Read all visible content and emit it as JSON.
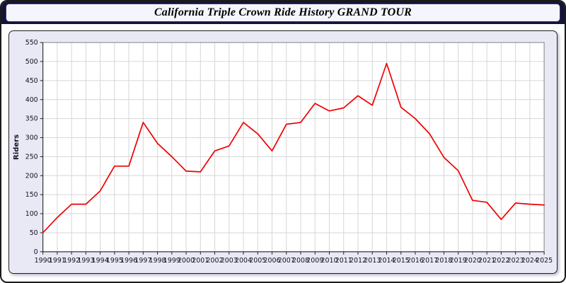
{
  "window": {
    "title": "California Triple Crown Ride History GRAND TOUR"
  },
  "chart_data": {
    "type": "line",
    "title": "California Triple Crown Ride History GRAND TOUR",
    "xlabel": "",
    "ylabel": "Riders",
    "ylim": [
      0,
      550
    ],
    "ytick_step": 50,
    "grid": true,
    "legend": "none",
    "line_color": "#ee0000",
    "x": [
      1990,
      1991,
      1992,
      1993,
      1994,
      1995,
      1996,
      1997,
      1998,
      1999,
      2000,
      2001,
      2002,
      2003,
      2004,
      2005,
      2006,
      2007,
      2008,
      2009,
      2010,
      2011,
      2012,
      2013,
      2014,
      2015,
      2016,
      2017,
      2018,
      2019,
      2020,
      2021,
      2022,
      2023,
      2024,
      2025
    ],
    "values": [
      50,
      90,
      125,
      125,
      160,
      225,
      225,
      340,
      285,
      250,
      212,
      210,
      265,
      278,
      340,
      310,
      265,
      335,
      340,
      390,
      370,
      378,
      410,
      385,
      495,
      380,
      350,
      310,
      248,
      213,
      135,
      130,
      85,
      128,
      125,
      123
    ]
  }
}
